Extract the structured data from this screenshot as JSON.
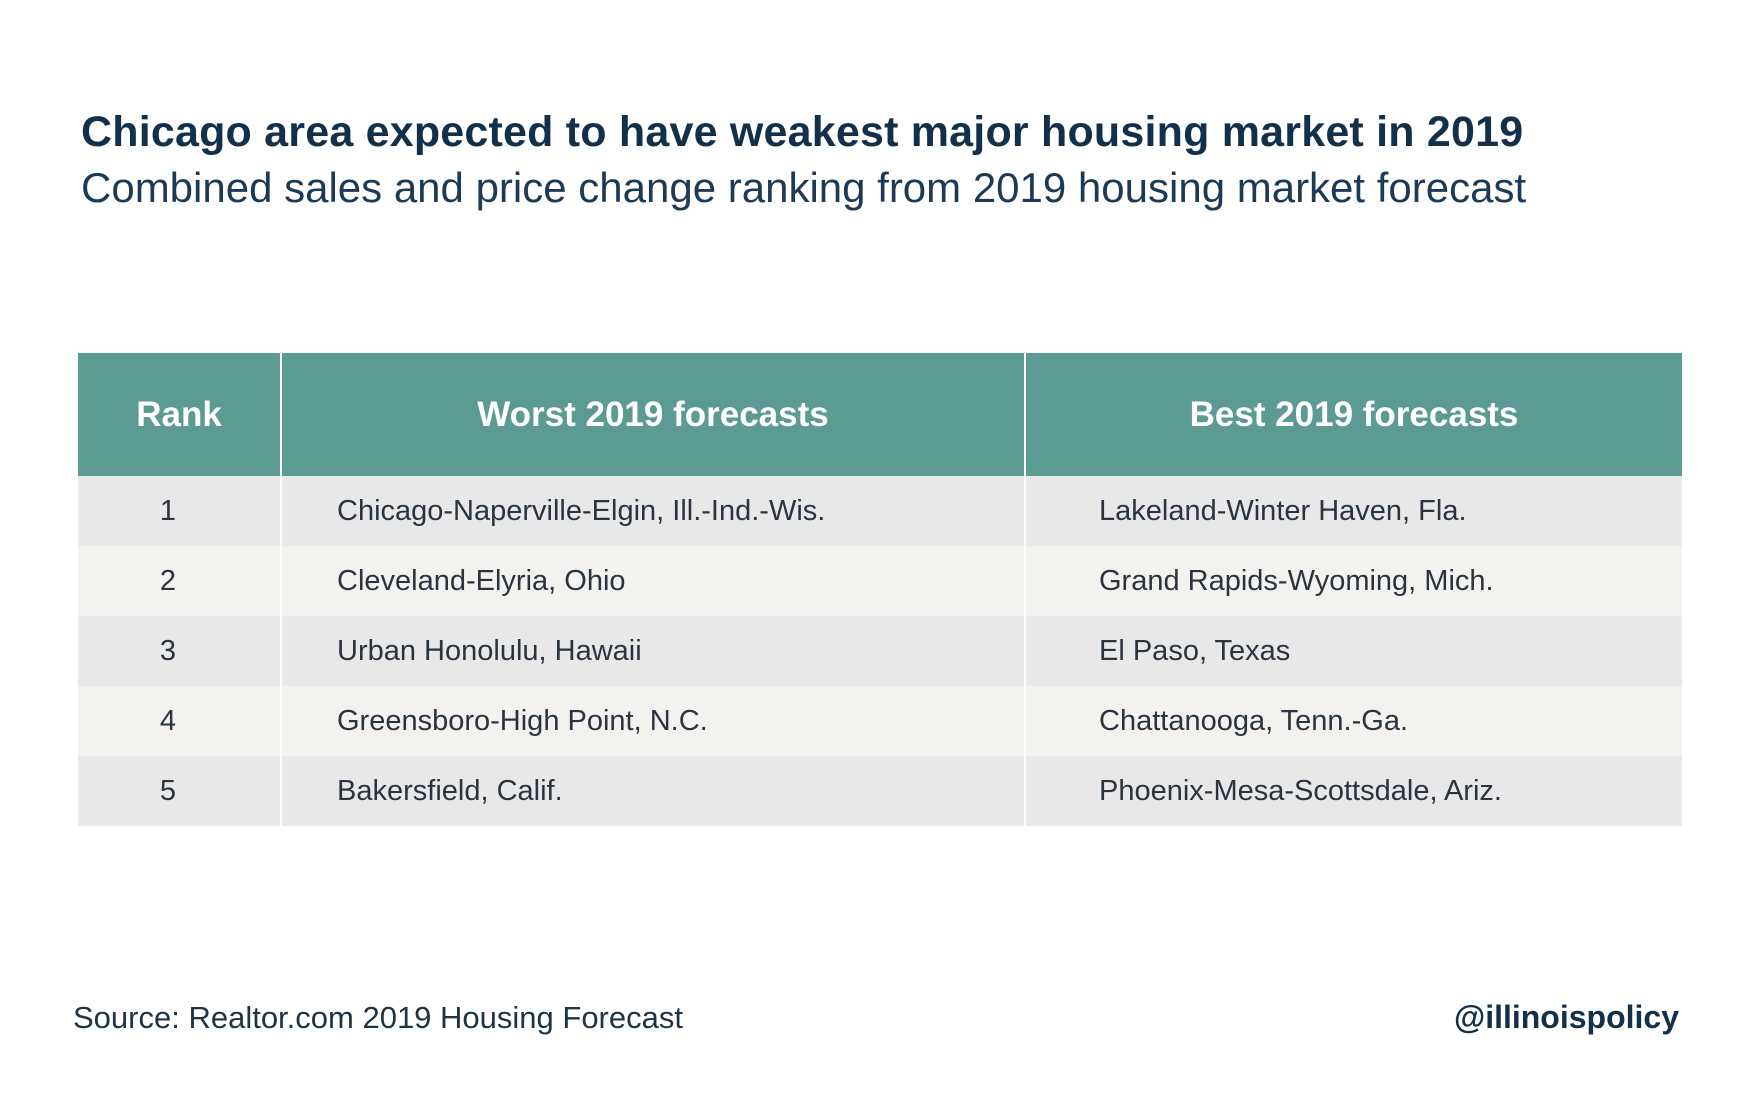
{
  "title": "Chicago area expected to have weakest major housing market in 2019",
  "subtitle": "Combined sales and price change ranking from 2019 housing market forecast",
  "colors": {
    "header_bg": "#5c9b93",
    "row_odd": "#e9e8e8",
    "row_even": "#f4f2ef",
    "title_text": "#13304a"
  },
  "chart_data": {
    "type": "table",
    "columns": [
      "Rank",
      "Worst 2019 forecasts",
      "Best 2019 forecasts"
    ],
    "rows": [
      [
        "1",
        "Chicago-Naperville-Elgin, Ill.-Ind.-Wis.",
        "Lakeland-Winter Haven, Fla."
      ],
      [
        "2",
        "Cleveland-Elyria, Ohio",
        "Grand Rapids-Wyoming, Mich."
      ],
      [
        "3",
        "Urban Honolulu, Hawaii",
        "El Paso, Texas"
      ],
      [
        "4",
        "Greensboro-High Point, N.C.",
        "Chattanooga, Tenn.-Ga."
      ],
      [
        "5",
        "Bakersfield, Calif.",
        "Phoenix-Mesa-Scottsdale, Ariz."
      ]
    ]
  },
  "footer": {
    "source": "Source: Realtor.com 2019 Housing Forecast",
    "handle": "@illinoispolicy"
  }
}
